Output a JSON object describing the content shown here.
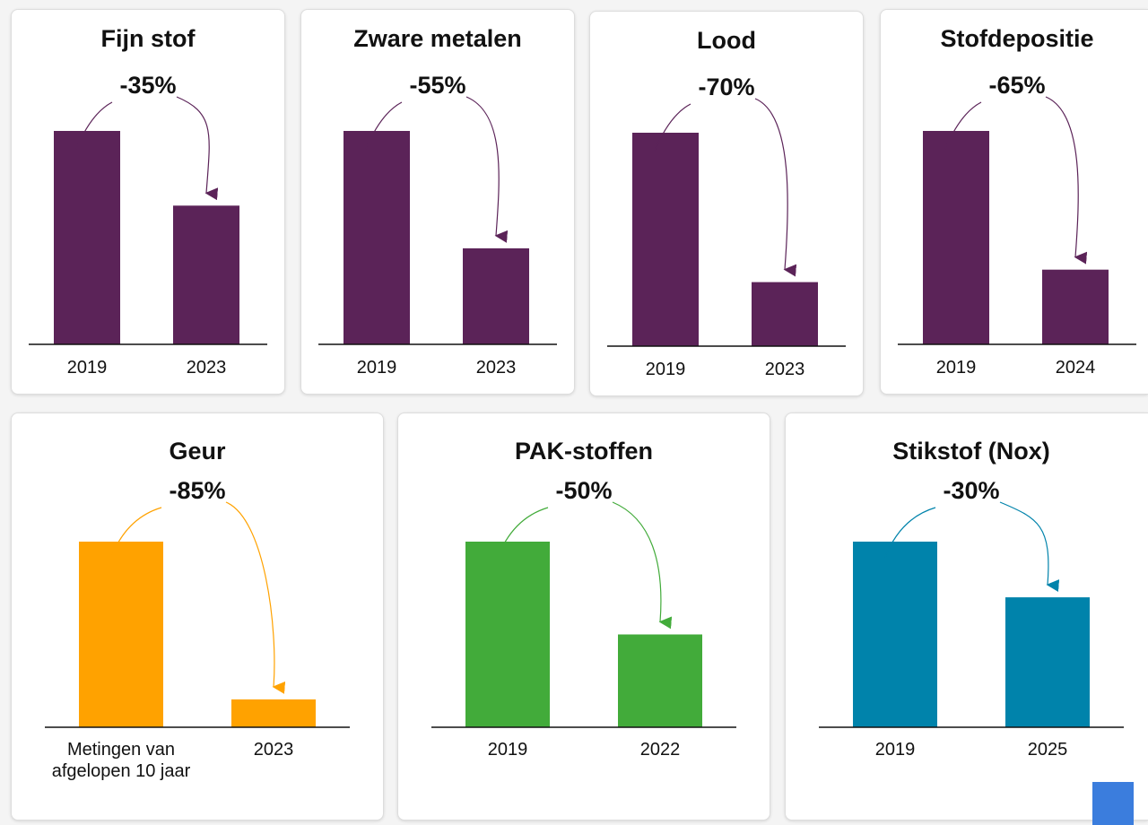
{
  "chart_data": [
    {
      "type": "bar",
      "title": "Fijn stof",
      "annotation": "-35%",
      "categories": [
        "2019",
        "2023"
      ],
      "values": [
        100,
        65
      ],
      "color": "#5b2358"
    },
    {
      "type": "bar",
      "title": "Zware metalen",
      "annotation": "-55%",
      "categories": [
        "2019",
        "2023"
      ],
      "values": [
        100,
        45
      ],
      "color": "#5b2358"
    },
    {
      "type": "bar",
      "title": "Lood",
      "annotation": "-70%",
      "categories": [
        "2019",
        "2023"
      ],
      "values": [
        100,
        30
      ],
      "color": "#5b2358"
    },
    {
      "type": "bar",
      "title": "Stofdepositie",
      "annotation": "-65%",
      "categories": [
        "2019",
        "2024"
      ],
      "values": [
        100,
        35
      ],
      "color": "#5b2358"
    },
    {
      "type": "bar",
      "title": "Geur",
      "annotation": "-85%",
      "categories": [
        "Metingen van afgelopen 10 jaar",
        "2023"
      ],
      "values": [
        100,
        15
      ],
      "color": "#ffa200"
    },
    {
      "type": "bar",
      "title": "PAK-stoffen",
      "annotation": "-50%",
      "categories": [
        "2019",
        "2022"
      ],
      "values": [
        100,
        50
      ],
      "color": "#42ab3a"
    },
    {
      "type": "bar",
      "title": "Stikstof (Nox)",
      "annotation": "-30%",
      "categories": [
        "2019",
        "2025"
      ],
      "values": [
        100,
        70
      ],
      "color": "#0083ab"
    }
  ]
}
